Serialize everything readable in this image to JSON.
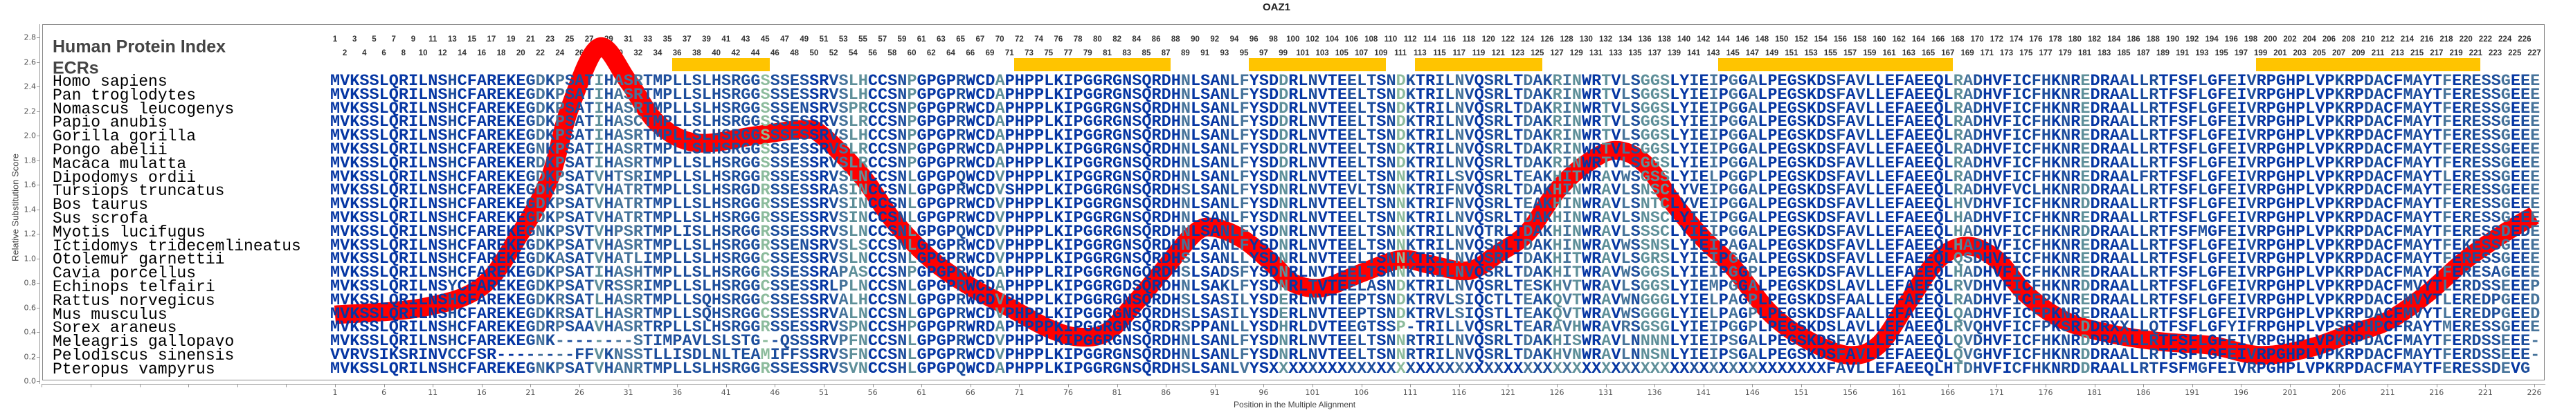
{
  "title": "OAZ1",
  "header": {
    "protein_index_label": "Human Protein Index",
    "ecr_label": "ECRs"
  },
  "human_index": [
    1,
    2,
    3,
    4,
    5,
    6,
    7,
    8,
    9,
    10,
    11,
    12,
    13,
    14,
    15,
    16,
    17,
    18,
    19,
    20,
    21,
    22,
    23,
    24,
    25,
    26,
    27,
    28,
    29,
    30,
    31,
    32,
    33,
    34,
    35,
    36,
    37,
    38,
    39,
    40,
    41,
    42,
    43,
    44,
    45,
    46,
    47,
    48,
    49,
    50,
    51,
    52,
    53,
    54,
    55,
    56,
    57,
    58,
    59,
    60,
    61,
    62,
    63,
    64,
    65,
    66,
    67,
    69,
    70,
    71,
    72,
    73,
    74,
    75,
    76,
    77,
    78,
    79,
    80,
    81,
    82,
    83,
    84,
    85,
    86,
    87,
    88,
    89,
    90,
    91,
    92,
    93,
    94,
    95,
    96,
    97,
    98,
    99,
    100,
    101,
    102,
    103,
    104,
    105,
    106,
    107,
    108,
    109,
    110,
    111,
    112,
    113,
    114,
    115,
    116,
    117,
    118,
    119,
    120,
    121,
    122,
    123,
    124,
    125,
    126,
    127,
    128,
    129,
    130,
    131,
    132,
    133,
    134,
    135,
    136,
    137,
    138,
    139,
    140,
    141,
    142,
    143,
    144,
    145,
    146,
    147,
    148,
    149,
    150,
    151,
    152,
    153,
    154,
    155,
    156,
    157,
    158,
    159,
    160,
    161,
    162,
    163,
    164,
    165,
    166,
    167,
    168,
    169,
    170,
    171,
    172,
    173,
    174,
    175,
    176,
    177,
    178,
    179,
    180,
    181,
    182,
    183,
    184,
    185,
    186,
    187,
    188,
    189,
    190,
    191,
    192,
    193,
    194,
    195,
    196,
    197,
    198,
    199,
    200,
    201,
    202,
    203,
    204,
    205,
    206,
    207,
    208,
    209,
    210,
    211,
    212,
    213,
    214,
    215,
    216,
    217,
    218,
    219,
    220,
    221,
    222,
    223,
    224,
    225,
    226,
    227
  ],
  "ecr_columns": [
    [
      36,
      45
    ],
    [
      71,
      86
    ],
    [
      95,
      108
    ],
    [
      112,
      124
    ],
    [
      143,
      166
    ],
    [
      198,
      220
    ]
  ],
  "colors": {
    "ecr": "#ffc400",
    "curve": "#ff0000",
    "conserved": "#0536a3",
    "mostly_conserved": "#1d4e9c",
    "variable": "#46739a",
    "more_variable": "#5e8f99",
    "least_conserved": "#8cbb9c"
  },
  "alignment": [
    {
      "species": "Homo sapiens",
      "sequence": "MVKSSLQRILNSHCFAREKEGDKPSATIHASRTMPLLSLHSRGGSSSESSRVSLHCCSNPGPGPRWCDAPHPPLKIPGGRGNSQRDHNLSANLFYSDDRLNVTEELTSNDKTRILNVQSRLTDAKRINWRTVLSGGSLYIEIPGGALPEGSKDSFAVLLEFAEEQLRADHVFICFHKNREDRAALLRTFSFLGFEIVRPGHPLVPKRPDACFMAYTFERESSGEEE"
    },
    {
      "species": "Pan troglodytes",
      "sequence": "MVKSSLQRILNSHCFAREKEGDKPSATIHASRTMPLLSLHSRGGSSSESSRVSLHCCSNPGPGPRWCDAPHPPLKIPGGRGNSQRDHNLSANLFYSDDRLNVTEELTSNDKTRILNVQSRLTDAKRINWRTVLSGGSLYIEIPGGALPEGSKDSFAVLLEFAEEQLRADHVFICFHKNREDRAALLRTFSFLGFEIVRPGHPLVPKRPDACFMAYTFERESSGEEE"
    },
    {
      "species": "Nomascus leucogenys",
      "sequence": "MVKSSLQRILNSHCFAREKEGDKPSATIHASRTMPLLSLHSRGGSSSENSRVSPRCCSNPGPGPRWCDAPHPPLKIPGGRGNSQRDHNLSANLFYSDDRLNVTEELTSNDKTRILNVQSRLTDAKRINWRTVLSGGSLYIEIPGGALPEGSKDSFAVLLEFAEEQLRADHVFICFHKNREDRAALLRTFSFLGFEIVRPGHPLVPKRPDACFMAYTFERESSGEEE"
    },
    {
      "species": "Papio anubis",
      "sequence": "MVKSSLQRILNSHCFAREKEGDKPSATIHASCTMPLLSLHSRGGSSSESSRVSLRCCSNPGPGPRWCDAPHPPLKIPGGRGNSQRDHNLSANLFYSDDRLNVTEELTSNDKTRILNVQSRLTDAKRINWRTVLSGGSLYIEIPGGALPEGSKDSFAVLLEFAEEQLRADHVFICFHKNREDRAALLRTFSFLGFEIVRPGHPLVPKRPDACFMAYTFERESSGEEE"
    },
    {
      "species": "Gorilla gorilla",
      "sequence": "MVKSSLQRILNSHCFAREKEGDKPSATIHASRTMPLLSLHSRGGSSSESSRVSLHCCSNPGPGPRWCDAPHPPLKIPGGRGNSQRDHNLSANLFYSDDRLNVTEELTSNDKTRILNVQSRLTDAKRINWRTVLSGGSLYIEIPGGALPEGSKDSFAVLLEFAEEQLRADHVFICFHKNREDRAALLRTFSFLGFEIVRPGHPLVPKRPDACFMAYTFERESSGEEE"
    },
    {
      "species": "Pongo abelii",
      "sequence": "MVKSSLQRILNSHCFAREKEGNKPSATIHASRTMPLLSLHSRGGSSSESSRVSLRCCSNPGPGPRWCDAPHPPLKIPGGRGNSQRDHNLSANLFYSDDRLNVTEELTSNDKTRILNVQSRLTDAKRINWRTVLSGGSLYIEIPGGALPEGSKDSFAVLLEFAEEQLRADHVFICFHKNREDRAALLRTFSFLGFEIVRPGHPLVPKRPDACFMAYTFERESSGEEE"
    },
    {
      "species": "Macaca mulatta",
      "sequence": "MVKSSLQRILNSHCFAREKERDKPSATIHASRTMPLLSLHSRGGSSSESSRVSLRCCSNPGPGPRWCDAPHPPLKIPGGRGNSQRDHNLSANLFYSDDRLNVTEELTSNDKTRILNVQSRLTDAKRINWRTVLSGGSLYIEIPGGALPEGSKDSFAVLLEFAEEQLRADHVFICFHKNREDRAALLRTFSFLGFEIVRPGHPLVPKRPDACFMAYTFERESSGEEE"
    },
    {
      "species": "Dipodomys ordii",
      "sequence": "MVKSSLQRILNSHCFAREKEGDKPSATVHTSRIMPLLSLHSRGGRSSESSRVSLNCCSNLGPGPQWCDVPHPPLKIPGGRGNSQRDHNLSANLFYSDNRLNVTEELTSNNKTRILSVQSRLTEAKHITWRAVWSGSSLYIELPGGPLPEGSKDSFAVLLEFAEEQLRADHVFICFHKNREDRAALFRTFSFLGFEIVRPGHPLVPKRPDACFMAYTLERESSGEEE"
    },
    {
      "species": "Tursiops truncatus",
      "sequence": "MVKSSLQRILNSHCFAREKEGDKPSATVHATRTMPLLSLHSRGDRSSESSRASINCCSNLGPGPRWCDVSHPPLKIPGGRGNSQRDHSLSANLFYSDNRLNVTEVLTSNNKTRIFNVQSRLTDAKHINWRAVLSNSCLYVEIPGGALPEGSKDSFAVLLEFAEEQLRADHVFVCLHKNRDDRAALLRTFSFLGFEIVRPGHPLVPKRPDACFMAYTFERESSGEEE"
    },
    {
      "species": "Bos taurus",
      "sequence": "MVKSSLQRILNSHCFAREKEGDKPSATVHATRTMPLLSLHSRGGRSSESSRVSINCCSNLGPGPRWCDVPHPPLKIPGGRGNSQRDHNLSANLFYSDNRLNVTEELTSNNKTRIFNVQSRLTEAKHINWRAVLSNTCLYVEIPGGALPEGSKDSFAVLLEFAEEQLHVDHVFICFHKNRDDRAALLRTFSFLGFEIVRPGHPLVPKRPDACFMAYTFERESSGEEE"
    },
    {
      "species": "Sus scrofa",
      "sequence": "MVKSSLQRILNSHCFAREKEGDKPSATVHATRTMPLLSLHSRGGRSSESSRVSINCCSNLGPGPRWCDVPHPPLKIPGGRGNSQRDHNLSANLFYSDNRLNVTEELTSNNKTRILNVQSRLTDAKHINWRAVLSNSCLYIEIPGGALPEGSKDSFAVLLEFAEEQLHADHVFICFHKNREDRAALLRTFSFLGFEIVRPGHPLVPKRPDACFMAYTFERESSGEEE"
    },
    {
      "species": "Myotis lucifugus",
      "sequence": "MVKSSLQRILNSHCFAREKEGNKPSVTVHPSRTMPLISLHSRGGRSSESSRVSLNCCSNLGPGPQWCDVPHPPLKIPGGRGNSQRDHNLSANLFYSDNRLNVTEELTSNNKTRILNVQTRLTDAKHINWRAVLSSSCLYIEIPGGALPEGSKDSFAVLLEFAEEQLHADHVFICFHKNRDDRAALLRTFSFMGFEIVRPGHPLVPKRPDACFMAYTFERESSDEDE"
    },
    {
      "species": "Ictidomys tridecemlineatus",
      "sequence": "MVKSSLQRILNSHCFAREKEGDKPSATVHASRTMPLLSLHSRGGRSSENSRVSLSCCSNLGPGPRWCDVPHPPLKIPGGRGNSQRDHNLSANLFYSDNRLNVTEELTSNNKTRILNVQSRLTDAKHINWRAVWSSNSLYIEIPAGALPEGSKDSFAVLLEFAEEQLHADHVFICFHKNREDRAALLRTFSFLGFEIVRPGHPLVPKRPDACFMAYTFEKESSGEEE"
    },
    {
      "species": "Otolemur garnettii",
      "sequence": "MVKSSLQRILNSHCFAREKEGDKASATVHATLIMPLLSLHSRGGCSSESSRVSLNCCSNLGPGPRWCDVPHPPLKIPGGRGNSQRDHSLSANLLYSDNRLNVTEELTSNNKTRILNVQSRLTDAKHITWRAVLSGRSLYIEIPGGALPEGSKDSFAVLLEFAEEQLQSDHVFICFHKNREDRAALLRTFSFLGFEIVRPGHPLVPKRPDACFMAYTFERESSGEEE"
    },
    {
      "species": "Cavia porcellus",
      "sequence": "MVKSSLQRILNSHCFAREKEGDKPSATIHASHTMPLLSLHSRGGRSSESSRAPASCCSNPGPGPRWCDAPHPPLRIPGGRGNGQRDHSLSADSFYSDNRLNVTEELTSNNKTRILNVQSRLTDAKHITWRAVWSGGSLYIEIPGGPLPEGSKDSFAVLLEFAEEQLHADHVFICFHKNREDRAALLRTFSFLGFEIVRPGHPLVPKRPDACFMAYTFERESAGEEE"
    },
    {
      "species": "Echinops telfairi",
      "sequence": "MVKSSLQRILNSYCFAREKEGDKPSATVRSSRIMPLLSLHSRGGCSSESSRLPLNCCSNLGPGPRWCDAPHPPLKIPGGRGDSQRDHNLSAKLFYSDNRLTVTEELASNDKTRILNVQSRLTESKHVTWRAVLSGGSLYIEMPGGALPEGSKDSLAVLLEFAEEQLRVDHVFICFHKNRDDRAALLRTFSFLGFEIVRPGHPLVPKRPDACFMVYTLERDSSEEEP"
    },
    {
      "species": "Rattus norvegicus",
      "sequence": "MVKSSLQRILNSHCFAREKEGDKRSATLHASRTMPLLSQHSRGGCSSESSRVALHCCSNLGPGPRWCDVPHPPLKIPGGRGNSQRDHSLSASILYSDERLNVTEEPTSNDKTRVLSIQCTLTEAKQVTWRAVWNGGGLYIELPAGPLPEGSKDSFAALLEFAEEQLRADHVFICFPKNREDRAALLRTFSFLGFEIVRPGHPLVPKRPDACFMVYTLEREDPGEED"
    },
    {
      "species": "Mus musculus",
      "sequence": "MVKSSLQRILNSHCFAREKEGDKRSATLHASRTMPLLSQHSRGGCSSESSRVALNCCSNLGPGPRWCDVPHPPLKIPGGRGNSQRDHSLSASILYSDERLNVTEEPTSNDKTRVLSIQSTLTEAKQVTWRAVWSGGGLYIELPAGPLPEGSKDSFAALLEFAEEQLQADHVFICFPKNREDRAALLRTFSFLGFEIVRPGHPLVPKRPDACFMVYTLEREDPGEED"
    },
    {
      "species": "Sorex araneus",
      "sequence": "MVKSSLQRILNSHCFAREKEGDRPSAAVHASRTRPLLSLHSRGGRSSESSRVSPNCCSHPGPGPRWRDAPHPPPKIPGGRGNSQRDRSPPANLLYSDHRLDVTEEGTSSP-TRILLVQSRLTEARAVHWRAVRSGSGLYIEIPGGPLPEGSKDSLAVLLEFAEEQLRVQHVFICFPKSRDDRXXLLQTFSFLGFYIFRPGHPLVPSRPHPCFRAYTMERESSGEEE"
    },
    {
      "species": "Meleagris gallopavo",
      "sequence": "MVKSSLQRILNSHCFAREKEGNK--------STIMPAVLSLSTG--QSSSRVPFNCCSNLGPGPRWCDVPHPPLKIPGGRGNSQRDHNLSANLFYSDNRLNVTEELTSNNRTRILNVQSRLTDAKHISWRAVLNNNNLYIEIPSGALPEGSKDSFAVLLEFAEEQLQVDHVFICFHKNRDDRAALLRTFSFLGFEIVRPGHPLVPKRPDACFMAYTFERDSSEEE-"
    },
    {
      "species": "Pelodiscus sinensis",
      "sequence": "VVRVSIKSRINVCCFSR--------FFVKNSSTLLISDLNLTEAMIFFSSRVSFNCCSNLGPGPRWCDVPHPPLKIPGGRGNSQRDHNLSANLFYSDNRLNVTEELTSNNRTRILNVQSRLTDAKHVNWRAVLNNSNLYIEIPSGALPEGSKDSFAVLLEFAEEQLQVGHVFICFHKNRDDRAALLRTFSFLGFEIVRPGHPLVPKRPDACFMAYTFERDSSEEE-"
    },
    {
      "species": "Pteropus vampyrus",
      "sequence": "MVKSSLQRILNSHCFAREKEGNKPSATVHANRTMPLLSLHSRGGRSSESSRVSVNCCSHLGPGPQWCDAPHPPLKIPGGRGNSQRDHSLSANLVYSXXXXXXXXXXXXXXXXXXXXXXXXXXXXXXXXXXXXXXXXXXXXXXXXXXXXXXXXXFAVLLEFAEEQLHTDHVFICFHKNRDDRAALLRTFSFMGFEIVRPGHPLVPKRPDACFMAYTFERESSDEVG"
    }
  ],
  "chart_data": {
    "type": "line",
    "title": "OAZ1",
    "xlabel": "Position in the Multiple Alignment",
    "ylabel": "Relative Substitution Score",
    "ylim": [
      0,
      2.8
    ],
    "yticks": [
      "0.0",
      "0.2",
      "0.4",
      "0.6",
      "0.8",
      "1.0",
      "1.2",
      "1.4",
      "1.6",
      "1.8",
      "2.0",
      "2.2",
      "2.4",
      "2.6",
      "2.8"
    ],
    "xlim": [
      1,
      226
    ],
    "xticks": [
      1,
      6,
      11,
      16,
      21,
      26,
      31,
      36,
      41,
      46,
      51,
      56,
      61,
      66,
      71,
      76,
      81,
      86,
      91,
      96,
      101,
      106,
      111,
      116,
      121,
      126,
      131,
      136,
      141,
      146,
      151,
      156,
      161,
      166,
      171,
      176,
      181,
      186,
      191,
      196,
      201,
      206,
      211,
      216,
      221,
      226
    ],
    "grid": false,
    "series": [
      {
        "x": [
          1,
          10,
          16,
          20,
          23,
          25,
          28,
          31,
          34,
          38,
          44,
          49,
          51,
          55,
          58,
          62,
          66,
          70,
          74,
          77,
          80,
          83,
          86,
          89,
          91,
          94,
          97,
          99,
          102,
          106,
          110,
          113,
          117,
          120,
          123,
          126,
          129,
          132,
          135,
          138,
          141,
          144,
          148,
          152,
          156,
          159,
          162,
          165,
          168,
          171,
          174,
          178,
          183,
          188,
          193,
          198,
          203,
          207,
          211,
          215,
          219,
          223,
          226
        ],
        "y": [
          0.54,
          0.6,
          0.77,
          1.21,
          1.66,
          2.22,
          2.72,
          2.44,
          2.1,
          1.94,
          2.0,
          2.05,
          1.99,
          1.66,
          1.32,
          0.99,
          0.77,
          0.6,
          0.43,
          0.36,
          0.4,
          0.65,
          0.93,
          1.21,
          1.25,
          1.15,
          0.95,
          0.8,
          0.76,
          0.88,
          0.99,
          0.95,
          0.9,
          1.04,
          1.21,
          1.55,
          1.77,
          1.88,
          1.77,
          1.44,
          1.16,
          0.93,
          0.54,
          0.32,
          0.21,
          0.3,
          0.65,
          0.99,
          1.1,
          0.99,
          0.71,
          0.49,
          0.38,
          0.32,
          0.29,
          0.21,
          0.27,
          0.38,
          0.49,
          0.71,
          0.99,
          1.21,
          1.35
        ]
      }
    ]
  }
}
